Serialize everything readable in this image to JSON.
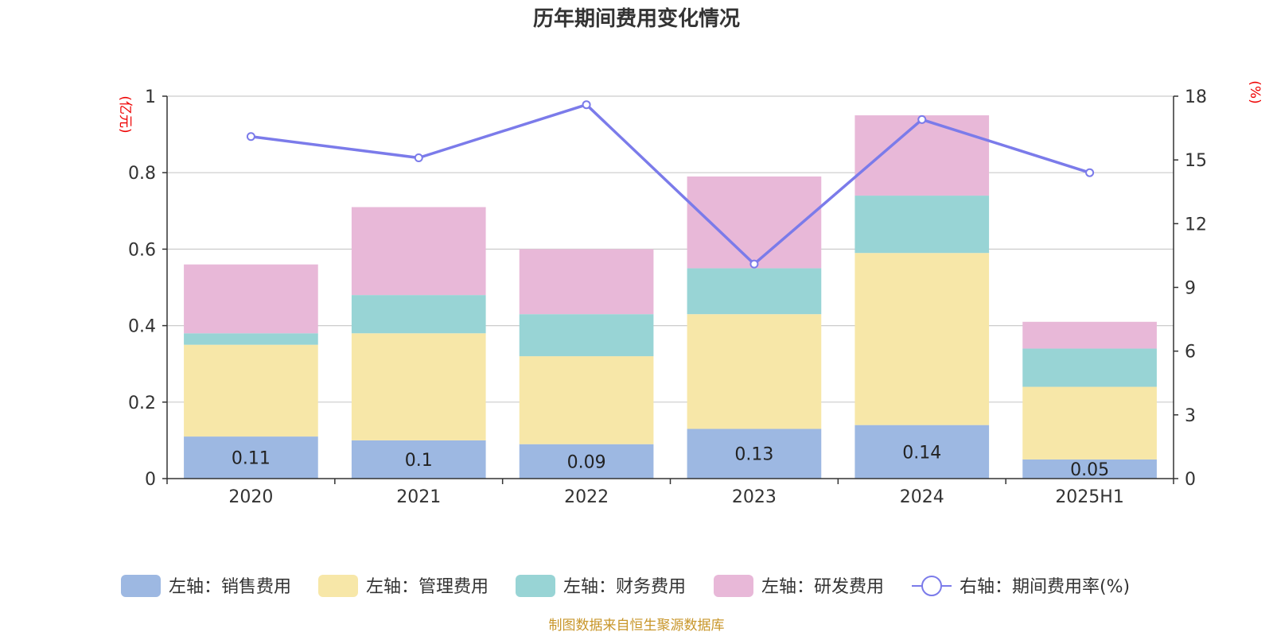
{
  "chart_data": {
    "type": "bar",
    "title": "历年期间费用变化情况",
    "categories": [
      "2020",
      "2021",
      "2022",
      "2023",
      "2024",
      "2025H1"
    ],
    "left_axis": {
      "unit": "(亿元)",
      "ylim": [
        0,
        1
      ],
      "ticks": [
        "0",
        "0.2",
        "0.4",
        "0.6",
        "0.8",
        "1"
      ],
      "tick_values": [
        0,
        0.2,
        0.4,
        0.6,
        0.8,
        1
      ]
    },
    "right_axis": {
      "unit": "(%)",
      "ylim": [
        0,
        18
      ],
      "ticks": [
        "0",
        "3",
        "6",
        "9",
        "12",
        "15",
        "18"
      ],
      "tick_values": [
        0,
        3,
        6,
        9,
        12,
        15,
        18
      ]
    },
    "grid": true,
    "legend_position": "bottom",
    "stacked": true,
    "series": [
      {
        "name": "左轴：销售费用",
        "axis": "left",
        "kind": "bar",
        "color": "#9db8e2",
        "values": [
          0.11,
          0.1,
          0.09,
          0.13,
          0.14,
          0.05
        ],
        "labels": [
          "0.11",
          "0.1",
          "0.09",
          "0.13",
          "0.14",
          "0.05"
        ]
      },
      {
        "name": "左轴：管理费用",
        "axis": "left",
        "kind": "bar",
        "color": "#f7e7a8",
        "values": [
          0.24,
          0.28,
          0.23,
          0.3,
          0.45,
          0.19
        ]
      },
      {
        "name": "左轴：财务费用",
        "axis": "left",
        "kind": "bar",
        "color": "#98d4d5",
        "values": [
          0.03,
          0.1,
          0.11,
          0.12,
          0.15,
          0.1
        ]
      },
      {
        "name": "左轴：研发费用",
        "axis": "left",
        "kind": "bar",
        "color": "#e8b8d8",
        "values": [
          0.18,
          0.23,
          0.17,
          0.24,
          0.21,
          0.07
        ]
      },
      {
        "name": "右轴：期间费用率(%)",
        "axis": "right",
        "kind": "line",
        "color": "#7b7bea",
        "values": [
          16.1,
          15.1,
          17.6,
          10.1,
          16.9,
          14.4
        ]
      }
    ]
  },
  "source_note": "制图数据来自恒生聚源数据库"
}
